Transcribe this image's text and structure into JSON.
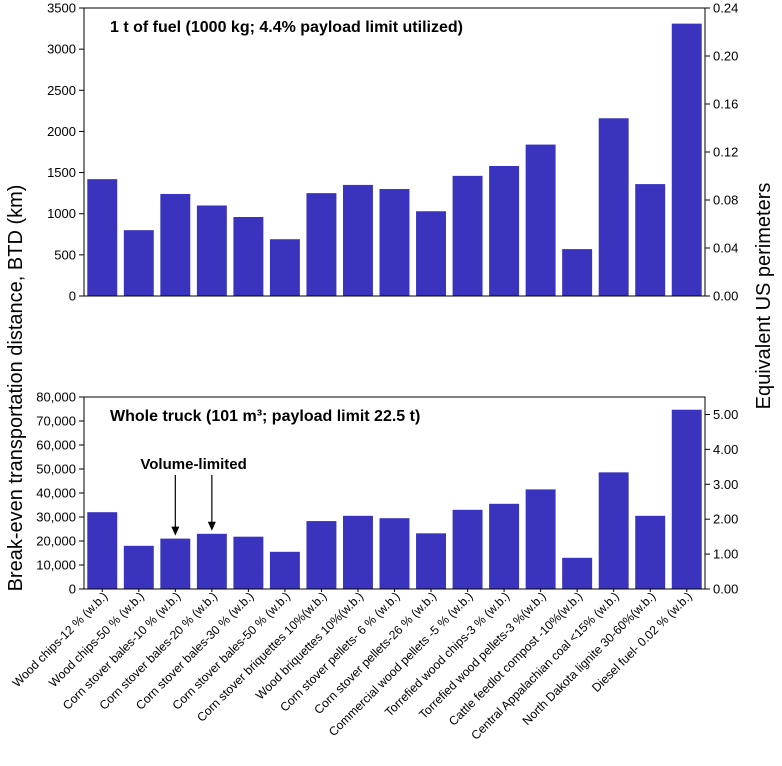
{
  "shared": {
    "ylabel_left": "Break-even transportation distance, BTD (km)",
    "ylabel_right": "Equivalent US perimeters",
    "bar_color": "#3A33BD",
    "categories": [
      "Wood chips-12 % (w.b.)",
      "Wood chips-50 % (w.b.)",
      "Corn stover bales-10 % (w.b.)",
      "Corn stover bales-20 % (w.b.)",
      "Corn stover bales-30 % (w.b.)",
      "Corn stover bales-50 % (w.b.)",
      "Corn stover briquettes 10%(w.b.)",
      "Wood briquettes 10%(w.b.)",
      "Corn stover pellets- 6 % (w.b.)",
      "Corn stover pellets-26 % (w.b.)",
      "Commercial wood pellets -5 % (w.b.)",
      "Torrefied wood chips-3 % (w.b.)",
      "Torrefied wood pellets-3 %(w.b.)",
      "Cattle feedlot compost -10%(w.b.)",
      "Central Appalachian coal <15% (w.b.)",
      "North Dakota lignite 30-60%(w.b.)",
      "Diesel fuel- 0.02 % (w.b.)"
    ]
  },
  "chart_data": [
    {
      "type": "bar",
      "title": "1 t of fuel (1000 kg; 4.4% payload limit utilized)",
      "ylabel": "Break-even transportation distance, BTD (km)",
      "y2label": "Equivalent US perimeters",
      "ylim": [
        0,
        3500
      ],
      "y2lim": [
        0,
        0.24
      ],
      "yticks": [
        "0",
        "500",
        "1000",
        "1500",
        "2000",
        "2500",
        "3000",
        "3500"
      ],
      "y2ticks": [
        "0.00",
        "0.04",
        "0.08",
        "0.12",
        "0.16",
        "0.20",
        "0.24"
      ],
      "values": [
        1420,
        800,
        1240,
        1100,
        960,
        690,
        1250,
        1350,
        1300,
        1030,
        1460,
        1580,
        1840,
        570,
        2160,
        1360,
        3310
      ]
    },
    {
      "type": "bar",
      "title": "Whole truck (101 m³; payload limit 22.5 t)",
      "ylabel": "Break-even transportation distance, BTD (km)",
      "y2label": "Equivalent US perimeters",
      "ylim": [
        0,
        80000
      ],
      "y2lim": [
        0,
        5.5
      ],
      "yticks": [
        "0",
        "10,000",
        "20,000",
        "30,000",
        "40,000",
        "50,000",
        "60,000",
        "70,000",
        "80,000"
      ],
      "y2ticks": [
        "0.00",
        "1.00",
        "2.00",
        "3.00",
        "4.00",
        "5.00"
      ],
      "values": [
        32000,
        18000,
        21000,
        23000,
        21800,
        15500,
        28300,
        30500,
        29500,
        23200,
        33000,
        35500,
        41500,
        13000,
        48600,
        30500,
        74700
      ],
      "annotation": {
        "text": "Volume-limited",
        "target_indices": [
          2,
          3
        ]
      }
    }
  ]
}
